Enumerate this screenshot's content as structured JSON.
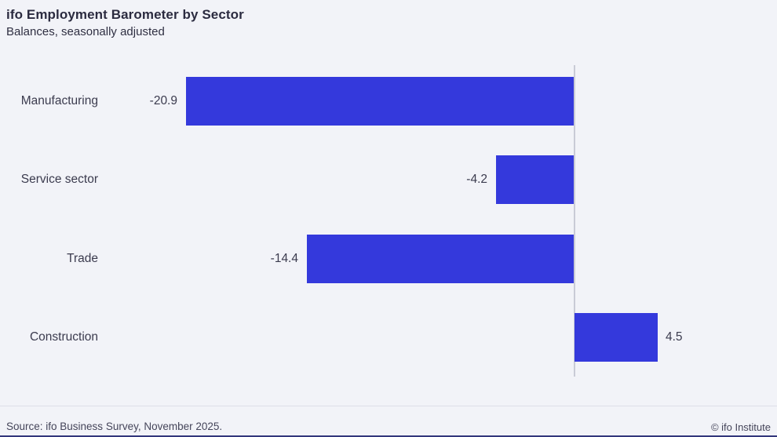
{
  "header": {
    "title": "ifo Employment Barometer by Sector",
    "subtitle": "Balances, seasonally adjusted"
  },
  "footer": {
    "source": "Source: ifo Business Survey, November 2025.",
    "copyright": "© ifo Institute"
  },
  "colors": {
    "background": "#f2f3f8",
    "bar": "#3439dc",
    "zero_line": "#c9cbd6",
    "text": "#3b3b4e",
    "bottom_border": "#32367c"
  },
  "chart_data": {
    "type": "bar",
    "orientation": "horizontal",
    "title": "ifo Employment Barometer by Sector",
    "subtitle": "Balances, seasonally adjusted",
    "categories": [
      "Manufacturing",
      "Service sector",
      "Trade",
      "Construction"
    ],
    "values": [
      -20.9,
      -4.2,
      -14.4,
      4.5
    ],
    "value_labels": [
      "-20.9",
      "-4.2",
      "-14.4",
      "4.5"
    ],
    "xlabel": "",
    "ylabel": "",
    "xlim": [
      -31,
      11
    ],
    "grid": false,
    "legend": false,
    "bar_color": "#3439dc",
    "value_label_position": "outside-end",
    "source": "Source: ifo Business Survey, November 2025.",
    "copyright": "© ifo Institute"
  }
}
